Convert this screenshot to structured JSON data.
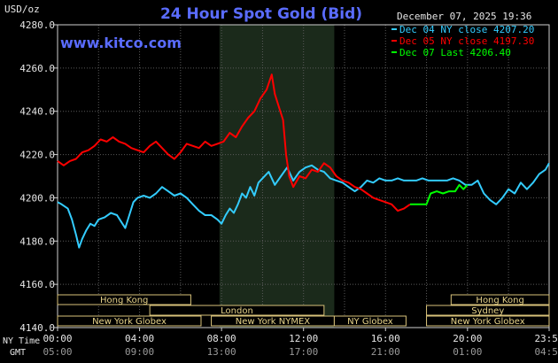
{
  "chart_data": {
    "type": "line",
    "title": "24 Hour Spot Gold (Bid)",
    "site": "www.kitco.com",
    "date_label": "December 07, 2025 19:36",
    "ylabel": "USD/oz",
    "ylim": [
      4140,
      4280
    ],
    "y_ticks": [
      "4280.0",
      "4260.0",
      "4240.0",
      "4220.0",
      "4200.0",
      "4180.0",
      "4160.0",
      "4140.0"
    ],
    "x_axis_label_ny": "NY Time",
    "x_axis_label_gmt": "GMT",
    "x_ticks_ny": [
      "00:00",
      "04:00",
      "08:00",
      "12:00",
      "16:00",
      "20:00",
      "23:59"
    ],
    "x_ticks_gmt": [
      "05:00",
      "09:00",
      "13:00",
      "17:00",
      "21:00",
      "01:00",
      "04:59"
    ],
    "grid": true,
    "legend_position": "top-right",
    "series": [
      {
        "name": "Dec 04 NY close 4207.20",
        "color": "#33ccff",
        "points": [
          [
            0,
            4198
          ],
          [
            0.2,
            4197
          ],
          [
            0.5,
            4195
          ],
          [
            0.7,
            4190
          ],
          [
            0.9,
            4183
          ],
          [
            1.05,
            4177
          ],
          [
            1.2,
            4181
          ],
          [
            1.4,
            4185
          ],
          [
            1.6,
            4188
          ],
          [
            1.8,
            4187
          ],
          [
            2.0,
            4190
          ],
          [
            2.3,
            4191
          ],
          [
            2.6,
            4193
          ],
          [
            2.9,
            4192
          ],
          [
            3.1,
            4189
          ],
          [
            3.3,
            4186
          ],
          [
            3.5,
            4192
          ],
          [
            3.7,
            4198
          ],
          [
            3.9,
            4200
          ],
          [
            4.2,
            4201
          ],
          [
            4.5,
            4200
          ],
          [
            4.8,
            4202
          ],
          [
            5.1,
            4205
          ],
          [
            5.4,
            4203
          ],
          [
            5.7,
            4201
          ],
          [
            6.0,
            4202
          ],
          [
            6.3,
            4200
          ],
          [
            6.6,
            4197
          ],
          [
            6.9,
            4194
          ],
          [
            7.2,
            4192
          ],
          [
            7.5,
            4192
          ],
          [
            7.8,
            4190
          ],
          [
            8.0,
            4188
          ],
          [
            8.2,
            4192
          ],
          [
            8.4,
            4195
          ],
          [
            8.6,
            4193
          ],
          [
            8.8,
            4197
          ],
          [
            9.0,
            4202
          ],
          [
            9.2,
            4200
          ],
          [
            9.4,
            4205
          ],
          [
            9.6,
            4201
          ],
          [
            9.8,
            4207
          ],
          [
            10.0,
            4209
          ],
          [
            10.3,
            4212
          ],
          [
            10.6,
            4206
          ],
          [
            10.9,
            4210
          ],
          [
            11.2,
            4214
          ],
          [
            11.5,
            4208
          ],
          [
            11.8,
            4212
          ],
          [
            12.1,
            4214
          ],
          [
            12.4,
            4215
          ],
          [
            12.7,
            4213
          ],
          [
            13.0,
            4212
          ],
          [
            13.3,
            4209
          ],
          [
            13.6,
            4208
          ],
          [
            13.9,
            4207
          ],
          [
            14.2,
            4205
          ],
          [
            14.5,
            4203
          ],
          [
            14.8,
            4205
          ],
          [
            15.1,
            4208
          ],
          [
            15.4,
            4207
          ],
          [
            15.7,
            4209
          ],
          [
            16.0,
            4208
          ],
          [
            16.3,
            4208
          ],
          [
            16.6,
            4209
          ],
          [
            16.9,
            4208
          ],
          [
            17.2,
            4208
          ],
          [
            17.5,
            4208
          ],
          [
            17.8,
            4209
          ],
          [
            18.1,
            4208
          ],
          [
            18.4,
            4208
          ],
          [
            18.7,
            4208
          ],
          [
            19.0,
            4208
          ],
          [
            19.3,
            4209
          ],
          [
            19.6,
            4208
          ],
          [
            19.9,
            4206
          ],
          [
            20.2,
            4206
          ],
          [
            20.5,
            4208
          ],
          [
            20.8,
            4202
          ],
          [
            21.1,
            4199
          ],
          [
            21.4,
            4197
          ],
          [
            21.7,
            4200
          ],
          [
            22.0,
            4204
          ],
          [
            22.3,
            4202
          ],
          [
            22.6,
            4207
          ],
          [
            22.9,
            4204
          ],
          [
            23.2,
            4207
          ],
          [
            23.5,
            4211
          ],
          [
            23.8,
            4213
          ],
          [
            23.98,
            4216
          ]
        ]
      },
      {
        "name": "Dec 05 NY close 4197.30",
        "color": "#ff0000",
        "points": [
          [
            0,
            4217
          ],
          [
            0.3,
            4215
          ],
          [
            0.6,
            4217
          ],
          [
            0.9,
            4218
          ],
          [
            1.2,
            4221
          ],
          [
            1.5,
            4222
          ],
          [
            1.8,
            4224
          ],
          [
            2.1,
            4227
          ],
          [
            2.4,
            4226
          ],
          [
            2.7,
            4228
          ],
          [
            3.0,
            4226
          ],
          [
            3.3,
            4225
          ],
          [
            3.6,
            4223
          ],
          [
            3.9,
            4222
          ],
          [
            4.2,
            4221
          ],
          [
            4.5,
            4224
          ],
          [
            4.8,
            4226
          ],
          [
            5.1,
            4223
          ],
          [
            5.4,
            4220
          ],
          [
            5.7,
            4218
          ],
          [
            6.0,
            4221
          ],
          [
            6.3,
            4225
          ],
          [
            6.6,
            4224
          ],
          [
            6.9,
            4223
          ],
          [
            7.2,
            4226
          ],
          [
            7.5,
            4224
          ],
          [
            7.8,
            4225
          ],
          [
            8.1,
            4226
          ],
          [
            8.4,
            4230
          ],
          [
            8.7,
            4228
          ],
          [
            9.0,
            4233
          ],
          [
            9.3,
            4237
          ],
          [
            9.6,
            4240
          ],
          [
            9.9,
            4246
          ],
          [
            10.2,
            4250
          ],
          [
            10.45,
            4257
          ],
          [
            10.6,
            4248
          ],
          [
            10.8,
            4242
          ],
          [
            11.0,
            4236
          ],
          [
            11.15,
            4220
          ],
          [
            11.3,
            4210
          ],
          [
            11.5,
            4205
          ],
          [
            11.8,
            4210
          ],
          [
            12.1,
            4209
          ],
          [
            12.4,
            4213
          ],
          [
            12.7,
            4212
          ],
          [
            13.0,
            4216
          ],
          [
            13.3,
            4214
          ],
          [
            13.6,
            4210
          ],
          [
            13.9,
            4208
          ],
          [
            14.2,
            4207
          ],
          [
            14.5,
            4205
          ],
          [
            14.8,
            4204
          ],
          [
            15.1,
            4202
          ],
          [
            15.4,
            4200
          ],
          [
            15.7,
            4199
          ],
          [
            16.0,
            4198
          ],
          [
            16.3,
            4197
          ],
          [
            16.6,
            4194
          ],
          [
            16.9,
            4195
          ],
          [
            17.2,
            4197
          ]
        ]
      },
      {
        "name": "Dec 07 Last 4206.40",
        "color": "#00ff00",
        "points": [
          [
            17.2,
            4197
          ],
          [
            17.6,
            4197
          ],
          [
            18.0,
            4197
          ],
          [
            18.2,
            4202
          ],
          [
            18.5,
            4203
          ],
          [
            18.8,
            4202
          ],
          [
            19.1,
            4203
          ],
          [
            19.4,
            4203
          ],
          [
            19.6,
            4206
          ],
          [
            19.8,
            4204
          ],
          [
            20.0,
            4206
          ]
        ]
      }
    ],
    "market_sessions": [
      {
        "name": "Hong Kong",
        "start": 0,
        "end": 6.5,
        "row": 0
      },
      {
        "name": "Hong Kong",
        "start": 19.2,
        "end": 23.98,
        "row": 0
      },
      {
        "name": "London",
        "start": 4.5,
        "end": 13.0,
        "row": 1
      },
      {
        "name": "Sydney",
        "start": 18.0,
        "end": 23.98,
        "row": 1
      },
      {
        "name": "New York Globex",
        "start": 0,
        "end": 7.0,
        "row": 2
      },
      {
        "name": "New York NYMEX",
        "start": 7.5,
        "end": 13.5,
        "row": 2
      },
      {
        "name": "NY Globex",
        "start": 13.5,
        "end": 17.0,
        "row": 2
      },
      {
        "name": "New York Globex",
        "start": 18.0,
        "end": 23.98,
        "row": 2
      }
    ]
  }
}
